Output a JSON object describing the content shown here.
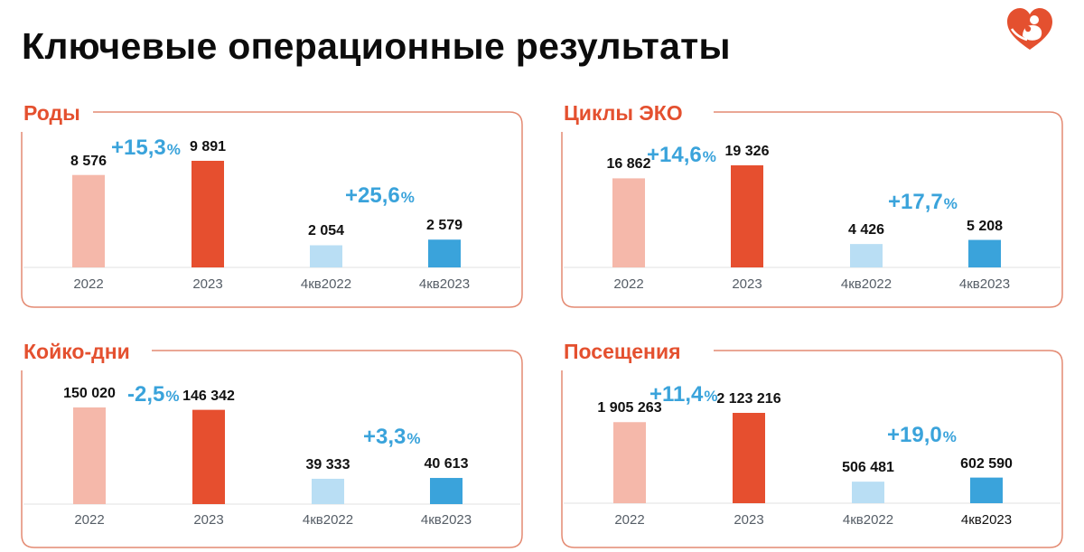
{
  "title": "Ключевые операционные результаты",
  "colors": {
    "accent": "#e4502f",
    "frame": "#e48a72",
    "bar_2022": "#f5b8aa",
    "bar_2023": "#e64f2f",
    "bar_q4_2022": "#b9def4",
    "bar_q4_2023": "#3aa3db",
    "growth_text": "#3aa3db",
    "axis": "#e2e2e2"
  },
  "logo": {
    "icon": "heart-mother-child-icon"
  },
  "chart_data": [
    {
      "type": "bar",
      "title": "Роды",
      "categories": [
        "2022",
        "2023",
        "4кв2022",
        "4кв2023"
      ],
      "values": [
        8576,
        9891,
        2054,
        2579
      ],
      "value_labels": [
        "8 576",
        "9 891",
        "2 054",
        "2 579"
      ],
      "growth_annual": {
        "num": "+15,3",
        "unit": "%"
      },
      "growth_quarter": {
        "num": "+25,6",
        "unit": "%"
      },
      "ylim": [
        0,
        13500
      ]
    },
    {
      "type": "bar",
      "title": "Циклы ЭКО",
      "categories": [
        "2022",
        "2023",
        "4кв2022",
        "4кв2023"
      ],
      "values": [
        16862,
        19326,
        4426,
        5208
      ],
      "value_labels": [
        "16 862",
        "19 326",
        "4 426",
        "5 208"
      ],
      "growth_annual": {
        "num": "+14,6",
        "unit": "%"
      },
      "growth_quarter": {
        "num": "+17,7",
        "unit": "%"
      },
      "ylim": [
        0,
        25800
      ]
    },
    {
      "type": "bar",
      "title": "Койко-дни",
      "categories": [
        "2022",
        "2023",
        "4кв2022",
        "4кв2023"
      ],
      "values": [
        150020,
        146342,
        39333,
        40613
      ],
      "value_labels": [
        "150 020",
        "146 342",
        "39 333",
        "40 613"
      ],
      "growth_annual": {
        "num": "-2,5",
        "unit": "%"
      },
      "growth_quarter": {
        "num": "+3,3",
        "unit": "%"
      },
      "ylim": [
        0,
        234000
      ]
    },
    {
      "type": "bar",
      "title": "Посещения",
      "categories": [
        "2022",
        "2023",
        "4кв2022",
        "4кв2023"
      ],
      "values": [
        1905263,
        2123216,
        506481,
        602590
      ],
      "value_labels": [
        "1 905 263",
        "2 123 216",
        "506 481",
        "602 590"
      ],
      "growth_annual": {
        "num": "+11,4",
        "unit": "%"
      },
      "growth_quarter": {
        "num": "+19,0",
        "unit": "%"
      },
      "ylim": [
        0,
        2680000
      ]
    }
  ]
}
